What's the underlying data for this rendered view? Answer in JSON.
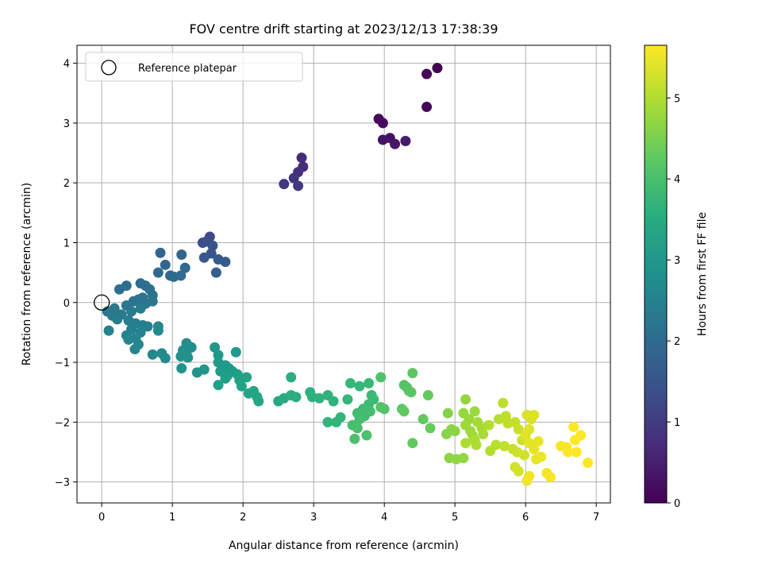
{
  "chart_data": {
    "type": "scatter",
    "title": "FOV centre drift starting at 2023/12/13 17:38:39",
    "xlabel": "Angular distance from reference (arcmin)",
    "ylabel": "Rotation from reference (arcmin)",
    "xlim": [
      -0.35,
      7.2
    ],
    "ylim": [
      -3.35,
      4.3
    ],
    "xticks": [
      0,
      1,
      2,
      3,
      4,
      5,
      6,
      7
    ],
    "yticks": [
      -3,
      -2,
      -1,
      0,
      1,
      2,
      3,
      4
    ],
    "grid": true,
    "legend": {
      "entries": [
        "Reference platepar"
      ],
      "placement": "top-left"
    },
    "reference_point": {
      "x": 0,
      "y": 0,
      "marker": "open-circle"
    },
    "colorbar": {
      "label": "Hours from first FF file",
      "colormap": "viridis",
      "range": [
        0,
        5.65
      ],
      "ticks": [
        0,
        1,
        2,
        3,
        4,
        5
      ]
    },
    "points": [
      {
        "x": 4.75,
        "y": 3.92,
        "h": 0.0
      },
      {
        "x": 4.6,
        "y": 3.82,
        "h": 0.05
      },
      {
        "x": 4.6,
        "y": 3.27,
        "h": 0.1
      },
      {
        "x": 3.92,
        "y": 3.07,
        "h": 0.15
      },
      {
        "x": 3.98,
        "y": 3.0,
        "h": 0.2
      },
      {
        "x": 4.08,
        "y": 2.75,
        "h": 0.25
      },
      {
        "x": 3.98,
        "y": 2.72,
        "h": 0.3
      },
      {
        "x": 4.15,
        "y": 2.65,
        "h": 0.35
      },
      {
        "x": 4.3,
        "y": 2.7,
        "h": 0.4
      },
      {
        "x": 2.83,
        "y": 2.42,
        "h": 0.7
      },
      {
        "x": 2.85,
        "y": 2.27,
        "h": 0.75
      },
      {
        "x": 2.78,
        "y": 2.18,
        "h": 0.8
      },
      {
        "x": 2.72,
        "y": 2.08,
        "h": 0.85
      },
      {
        "x": 2.58,
        "y": 1.98,
        "h": 0.9
      },
      {
        "x": 2.78,
        "y": 1.95,
        "h": 0.95
      },
      {
        "x": 1.53,
        "y": 1.1,
        "h": 1.3
      },
      {
        "x": 1.48,
        "y": 1.02,
        "h": 1.35
      },
      {
        "x": 1.43,
        "y": 1.0,
        "h": 1.4
      },
      {
        "x": 1.57,
        "y": 0.95,
        "h": 1.45
      },
      {
        "x": 1.55,
        "y": 0.82,
        "h": 1.5
      },
      {
        "x": 1.45,
        "y": 0.75,
        "h": 1.55
      },
      {
        "x": 1.65,
        "y": 0.72,
        "h": 1.6
      },
      {
        "x": 1.75,
        "y": 0.68,
        "h": 1.65
      },
      {
        "x": 1.62,
        "y": 0.5,
        "h": 1.7
      },
      {
        "x": 0.83,
        "y": 0.83,
        "h": 1.8
      },
      {
        "x": 1.13,
        "y": 0.8,
        "h": 1.82
      },
      {
        "x": 0.9,
        "y": 0.63,
        "h": 1.85
      },
      {
        "x": 1.18,
        "y": 0.58,
        "h": 1.88
      },
      {
        "x": 0.8,
        "y": 0.5,
        "h": 1.9
      },
      {
        "x": 0.97,
        "y": 0.45,
        "h": 1.92
      },
      {
        "x": 1.02,
        "y": 0.43,
        "h": 1.95
      },
      {
        "x": 1.12,
        "y": 0.45,
        "h": 1.98
      },
      {
        "x": 0.35,
        "y": 0.28,
        "h": 2.0
      },
      {
        "x": 0.55,
        "y": 0.32,
        "h": 2.02
      },
      {
        "x": 0.62,
        "y": 0.28,
        "h": 2.04
      },
      {
        "x": 0.25,
        "y": 0.22,
        "h": 2.06
      },
      {
        "x": 0.68,
        "y": 0.22,
        "h": 2.08
      },
      {
        "x": 0.72,
        "y": 0.12,
        "h": 2.1
      },
      {
        "x": 0.58,
        "y": 0.08,
        "h": 2.12
      },
      {
        "x": 0.52,
        "y": 0.05,
        "h": 2.14
      },
      {
        "x": 0.45,
        "y": 0.02,
        "h": 2.16
      },
      {
        "x": 0.72,
        "y": 0.02,
        "h": 2.18
      },
      {
        "x": 0.62,
        "y": -0.02,
        "h": 2.2
      },
      {
        "x": 0.35,
        "y": -0.05,
        "h": 2.22
      },
      {
        "x": 0.18,
        "y": -0.1,
        "h": 2.24
      },
      {
        "x": 0.08,
        "y": -0.15,
        "h": 2.26
      },
      {
        "x": 0.15,
        "y": -0.22,
        "h": 2.28
      },
      {
        "x": 0.28,
        "y": -0.2,
        "h": 2.3
      },
      {
        "x": 0.42,
        "y": -0.15,
        "h": 2.32
      },
      {
        "x": 0.55,
        "y": -0.1,
        "h": 2.34
      },
      {
        "x": 0.22,
        "y": -0.28,
        "h": 2.36
      },
      {
        "x": 0.38,
        "y": -0.3,
        "h": 2.38
      },
      {
        "x": 0.48,
        "y": -0.35,
        "h": 2.4
      },
      {
        "x": 0.58,
        "y": -0.38,
        "h": 2.42
      },
      {
        "x": 0.65,
        "y": -0.4,
        "h": 2.44
      },
      {
        "x": 0.42,
        "y": -0.45,
        "h": 2.46
      },
      {
        "x": 0.1,
        "y": -0.47,
        "h": 2.48
      },
      {
        "x": 0.55,
        "y": -0.5,
        "h": 2.5
      },
      {
        "x": 0.35,
        "y": -0.55,
        "h": 2.52
      },
      {
        "x": 0.48,
        "y": -0.6,
        "h": 2.54
      },
      {
        "x": 0.38,
        "y": -0.62,
        "h": 2.56
      },
      {
        "x": 0.52,
        "y": -0.7,
        "h": 2.58
      },
      {
        "x": 0.47,
        "y": -0.78,
        "h": 2.6
      },
      {
        "x": 0.8,
        "y": -0.4,
        "h": 2.62
      },
      {
        "x": 0.8,
        "y": -0.47,
        "h": 2.64
      },
      {
        "x": 0.72,
        "y": -0.87,
        "h": 2.66
      },
      {
        "x": 0.85,
        "y": -0.85,
        "h": 2.68
      },
      {
        "x": 0.9,
        "y": -0.93,
        "h": 2.7
      },
      {
        "x": 1.2,
        "y": -0.68,
        "h": 2.75
      },
      {
        "x": 1.27,
        "y": -0.75,
        "h": 2.78
      },
      {
        "x": 1.15,
        "y": -0.8,
        "h": 2.8
      },
      {
        "x": 1.2,
        "y": -0.85,
        "h": 2.82
      },
      {
        "x": 1.12,
        "y": -0.9,
        "h": 2.85
      },
      {
        "x": 1.22,
        "y": -0.92,
        "h": 2.88
      },
      {
        "x": 1.13,
        "y": -1.1,
        "h": 2.9
      },
      {
        "x": 1.35,
        "y": -1.17,
        "h": 2.92
      },
      {
        "x": 1.45,
        "y": -1.12,
        "h": 2.95
      },
      {
        "x": 1.6,
        "y": -0.75,
        "h": 2.98
      },
      {
        "x": 1.65,
        "y": -0.88,
        "h": 3.0
      },
      {
        "x": 1.9,
        "y": -0.83,
        "h": 3.02
      },
      {
        "x": 1.65,
        "y": -1.0,
        "h": 3.04
      },
      {
        "x": 1.75,
        "y": -1.05,
        "h": 3.06
      },
      {
        "x": 1.8,
        "y": -1.1,
        "h": 3.08
      },
      {
        "x": 1.68,
        "y": -1.15,
        "h": 3.1
      },
      {
        "x": 1.85,
        "y": -1.15,
        "h": 3.12
      },
      {
        "x": 1.78,
        "y": -1.22,
        "h": 3.14
      },
      {
        "x": 1.92,
        "y": -1.2,
        "h": 3.16
      },
      {
        "x": 1.75,
        "y": -1.27,
        "h": 3.18
      },
      {
        "x": 1.65,
        "y": -1.38,
        "h": 3.2
      },
      {
        "x": 1.95,
        "y": -1.3,
        "h": 3.22
      },
      {
        "x": 2.05,
        "y": -1.25,
        "h": 3.24
      },
      {
        "x": 1.98,
        "y": -1.4,
        "h": 3.26
      },
      {
        "x": 2.08,
        "y": -1.52,
        "h": 3.28
      },
      {
        "x": 2.15,
        "y": -1.48,
        "h": 3.3
      },
      {
        "x": 2.2,
        "y": -1.58,
        "h": 3.32
      },
      {
        "x": 2.22,
        "y": -1.65,
        "h": 3.34
      },
      {
        "x": 2.5,
        "y": -1.65,
        "h": 3.4
      },
      {
        "x": 2.58,
        "y": -1.6,
        "h": 3.45
      },
      {
        "x": 2.68,
        "y": -1.55,
        "h": 3.5
      },
      {
        "x": 2.75,
        "y": -1.58,
        "h": 3.52
      },
      {
        "x": 2.68,
        "y": -1.25,
        "h": 3.55
      },
      {
        "x": 2.95,
        "y": -1.5,
        "h": 3.58
      },
      {
        "x": 2.98,
        "y": -1.58,
        "h": 3.6
      },
      {
        "x": 3.08,
        "y": -1.6,
        "h": 3.62
      },
      {
        "x": 3.2,
        "y": -1.55,
        "h": 3.64
      },
      {
        "x": 3.28,
        "y": -1.65,
        "h": 3.66
      },
      {
        "x": 3.2,
        "y": -2.0,
        "h": 3.68
      },
      {
        "x": 3.32,
        "y": -2.0,
        "h": 3.7
      },
      {
        "x": 3.38,
        "y": -1.92,
        "h": 3.72
      },
      {
        "x": 3.48,
        "y": -1.62,
        "h": 3.74
      },
      {
        "x": 3.52,
        "y": -1.35,
        "h": 3.76
      },
      {
        "x": 3.65,
        "y": -1.4,
        "h": 3.78
      },
      {
        "x": 3.78,
        "y": -1.35,
        "h": 3.8
      },
      {
        "x": 3.82,
        "y": -1.55,
        "h": 3.82
      },
      {
        "x": 3.85,
        "y": -1.62,
        "h": 3.84
      },
      {
        "x": 3.78,
        "y": -1.7,
        "h": 3.86
      },
      {
        "x": 3.7,
        "y": -1.78,
        "h": 3.88
      },
      {
        "x": 3.62,
        "y": -1.85,
        "h": 3.9
      },
      {
        "x": 3.72,
        "y": -1.9,
        "h": 3.92
      },
      {
        "x": 3.8,
        "y": -1.82,
        "h": 3.94
      },
      {
        "x": 3.65,
        "y": -1.95,
        "h": 3.96
      },
      {
        "x": 3.55,
        "y": -2.05,
        "h": 3.98
      },
      {
        "x": 3.62,
        "y": -2.1,
        "h": 4.0
      },
      {
        "x": 3.58,
        "y": -2.28,
        "h": 4.02
      },
      {
        "x": 3.75,
        "y": -2.22,
        "h": 4.04
      },
      {
        "x": 3.95,
        "y": -1.25,
        "h": 4.06
      },
      {
        "x": 3.95,
        "y": -1.75,
        "h": 4.08
      },
      {
        "x": 4.0,
        "y": -1.78,
        "h": 4.1
      },
      {
        "x": 4.28,
        "y": -1.38,
        "h": 4.12
      },
      {
        "x": 4.32,
        "y": -1.42,
        "h": 4.14
      },
      {
        "x": 4.35,
        "y": -1.48,
        "h": 4.16
      },
      {
        "x": 4.38,
        "y": -1.5,
        "h": 4.18
      },
      {
        "x": 4.4,
        "y": -1.18,
        "h": 4.2
      },
      {
        "x": 4.25,
        "y": -1.78,
        "h": 4.22
      },
      {
        "x": 4.28,
        "y": -1.82,
        "h": 4.24
      },
      {
        "x": 4.4,
        "y": -2.35,
        "h": 4.26
      },
      {
        "x": 4.55,
        "y": -1.95,
        "h": 4.28
      },
      {
        "x": 4.62,
        "y": -1.55,
        "h": 4.3
      },
      {
        "x": 4.65,
        "y": -2.1,
        "h": 4.32
      },
      {
        "x": 4.9,
        "y": -1.85,
        "h": 4.6
      },
      {
        "x": 4.88,
        "y": -2.2,
        "h": 4.62
      },
      {
        "x": 4.95,
        "y": -2.12,
        "h": 4.64
      },
      {
        "x": 5.0,
        "y": -2.15,
        "h": 4.66
      },
      {
        "x": 4.92,
        "y": -2.6,
        "h": 4.68
      },
      {
        "x": 5.02,
        "y": -2.62,
        "h": 4.7
      },
      {
        "x": 5.12,
        "y": -2.6,
        "h": 4.72
      },
      {
        "x": 5.15,
        "y": -1.62,
        "h": 4.74
      },
      {
        "x": 5.12,
        "y": -1.85,
        "h": 4.76
      },
      {
        "x": 5.2,
        "y": -1.95,
        "h": 4.78
      },
      {
        "x": 5.28,
        "y": -1.82,
        "h": 4.8
      },
      {
        "x": 5.15,
        "y": -2.05,
        "h": 4.82
      },
      {
        "x": 5.22,
        "y": -2.15,
        "h": 4.84
      },
      {
        "x": 5.25,
        "y": -2.22,
        "h": 4.86
      },
      {
        "x": 5.32,
        "y": -2.0,
        "h": 4.88
      },
      {
        "x": 5.38,
        "y": -2.1,
        "h": 4.9
      },
      {
        "x": 5.4,
        "y": -2.2,
        "h": 4.92
      },
      {
        "x": 5.28,
        "y": -2.3,
        "h": 4.94
      },
      {
        "x": 5.15,
        "y": -2.35,
        "h": 4.96
      },
      {
        "x": 5.3,
        "y": -2.38,
        "h": 4.98
      },
      {
        "x": 5.48,
        "y": -2.05,
        "h": 5.0
      },
      {
        "x": 5.5,
        "y": -2.48,
        "h": 5.02
      },
      {
        "x": 5.62,
        "y": -1.95,
        "h": 5.04
      },
      {
        "x": 5.58,
        "y": -2.38,
        "h": 5.06
      },
      {
        "x": 5.68,
        "y": -1.68,
        "h": 5.08
      },
      {
        "x": 5.72,
        "y": -1.9,
        "h": 5.1
      },
      {
        "x": 5.75,
        "y": -2.02,
        "h": 5.12
      },
      {
        "x": 5.7,
        "y": -2.4,
        "h": 5.14
      },
      {
        "x": 5.82,
        "y": -2.45,
        "h": 5.16
      },
      {
        "x": 5.85,
        "y": -2.0,
        "h": 5.18
      },
      {
        "x": 5.9,
        "y": -2.12,
        "h": 5.2
      },
      {
        "x": 5.95,
        "y": -2.3,
        "h": 5.22
      },
      {
        "x": 5.88,
        "y": -2.5,
        "h": 5.24
      },
      {
        "x": 5.98,
        "y": -2.55,
        "h": 5.26
      },
      {
        "x": 5.85,
        "y": -2.75,
        "h": 5.28
      },
      {
        "x": 5.9,
        "y": -2.82,
        "h": 5.3
      },
      {
        "x": 6.02,
        "y": -1.88,
        "h": 5.32
      },
      {
        "x": 6.08,
        "y": -1.95,
        "h": 5.34
      },
      {
        "x": 6.12,
        "y": -1.88,
        "h": 5.36
      },
      {
        "x": 6.05,
        "y": -2.12,
        "h": 5.38
      },
      {
        "x": 6.0,
        "y": -2.22,
        "h": 5.4
      },
      {
        "x": 6.05,
        "y": -2.35,
        "h": 5.42
      },
      {
        "x": 6.12,
        "y": -2.45,
        "h": 5.44
      },
      {
        "x": 6.18,
        "y": -2.32,
        "h": 5.46
      },
      {
        "x": 6.15,
        "y": -2.62,
        "h": 5.48
      },
      {
        "x": 6.22,
        "y": -2.58,
        "h": 5.5
      },
      {
        "x": 6.05,
        "y": -2.9,
        "h": 5.52
      },
      {
        "x": 6.02,
        "y": -2.98,
        "h": 5.54
      },
      {
        "x": 6.3,
        "y": -2.85,
        "h": 5.56
      },
      {
        "x": 6.35,
        "y": -2.92,
        "h": 5.58
      },
      {
        "x": 6.5,
        "y": -2.4,
        "h": 5.6
      },
      {
        "x": 6.58,
        "y": -2.42,
        "h": 5.61
      },
      {
        "x": 6.6,
        "y": -2.5,
        "h": 5.62
      },
      {
        "x": 6.7,
        "y": -2.3,
        "h": 5.63
      },
      {
        "x": 6.68,
        "y": -2.08,
        "h": 5.64
      },
      {
        "x": 6.72,
        "y": -2.5,
        "h": 5.64
      },
      {
        "x": 6.78,
        "y": -2.22,
        "h": 5.65
      },
      {
        "x": 6.88,
        "y": -2.68,
        "h": 5.65
      }
    ]
  }
}
